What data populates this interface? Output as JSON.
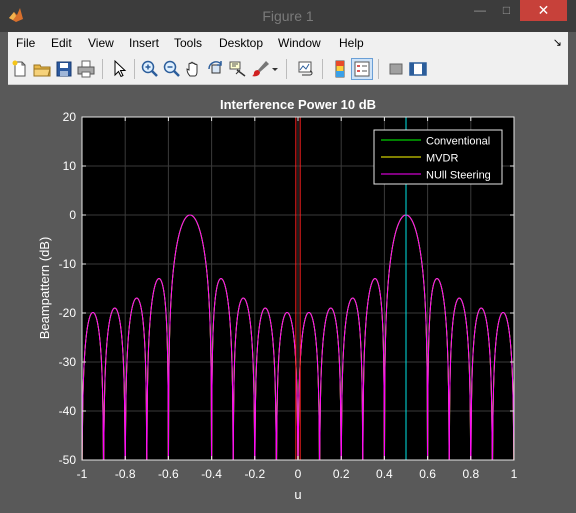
{
  "window": {
    "title": "Figure 1"
  },
  "menu": {
    "items": [
      "File",
      "Edit",
      "View",
      "Insert",
      "Tools",
      "Desktop",
      "Window",
      "Help"
    ],
    "dock_glyph": "↘"
  },
  "toolbar": {
    "icons": [
      "new-figure-icon",
      "open-file-icon",
      "save-icon",
      "print-icon",
      "edit-plot-arrow-icon",
      "zoom-in-icon",
      "zoom-out-icon",
      "pan-hand-icon",
      "rotate-3d-icon",
      "data-cursor-icon",
      "brush-icon",
      "brush-dropdown-icon",
      "link-plot-icon",
      "colorbar-icon",
      "legend-icon",
      "hide-plot-tools-icon",
      "show-plot-tools-icon"
    ]
  },
  "colors": {
    "conventional": "#00ff00",
    "mvdr": "#ffff00",
    "null_steering": "#ff00ff",
    "interferer_marker": "#ff2020",
    "target_marker": "#00e5e5",
    "axes_bg": "#000000",
    "figure_bg": "#595959"
  },
  "chart_data": {
    "type": "line",
    "title": "Interference Power 10 dB",
    "xlabel": "u",
    "ylabel": "Beampattern (dB)",
    "xlim": [
      -1,
      1
    ],
    "ylim": [
      -50,
      20
    ],
    "xticks": [
      "-1",
      "-0.8",
      "-0.6",
      "-0.4",
      "-0.2",
      "0",
      "0.2",
      "0.4",
      "0.6",
      "0.8",
      "1"
    ],
    "yticks": [
      "20",
      "10",
      "0",
      "-10",
      "-20",
      "-30",
      "-40",
      "-50"
    ],
    "grid": true,
    "legend_position": "top-right",
    "array_elements": 10,
    "series": [
      {
        "name": "Conventional",
        "steer_u": 0.5,
        "null_u": null
      },
      {
        "name": "MVDR",
        "steer_u": 0.5,
        "null_u": 0.0
      },
      {
        "name": "NUll Steering",
        "steer_u": 0.5,
        "null_u": 0.0
      }
    ],
    "markers": [
      {
        "u": 0.5,
        "label": ""
      },
      {
        "u": -0.01,
        "label": ""
      },
      {
        "u": 0.01,
        "label": ""
      }
    ]
  }
}
